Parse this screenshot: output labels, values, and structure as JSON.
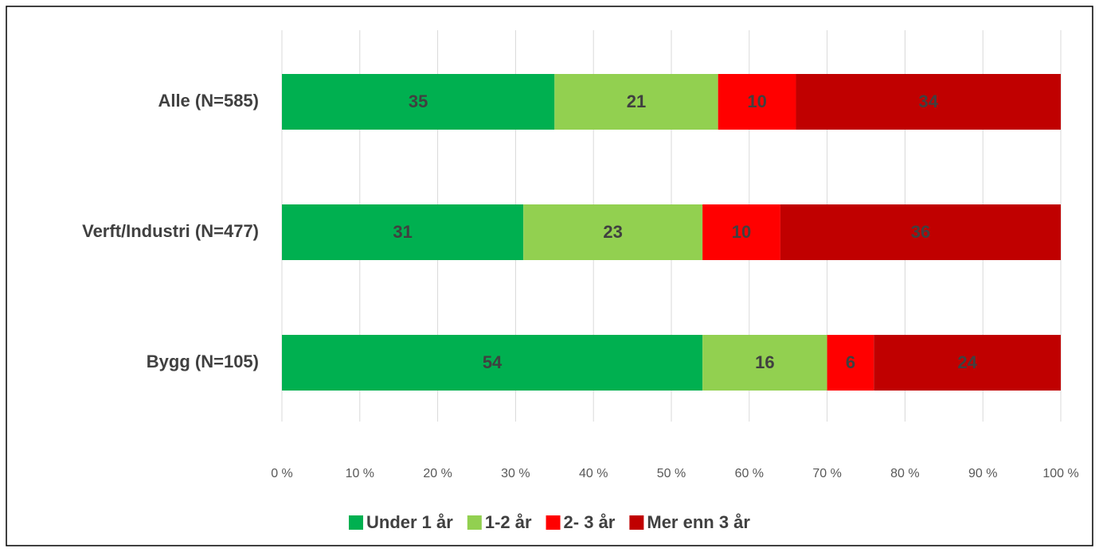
{
  "chart_data": {
    "type": "stacked_bar_horizontal",
    "categories": [
      "Alle (N=585)",
      "Verft/Industri (N=477)",
      "Bygg (N=105)"
    ],
    "series": [
      {
        "name": "Under 1 år",
        "color": "#00b050",
        "values": [
          35,
          31,
          54
        ]
      },
      {
        "name": "1-2 år",
        "color": "#92d050",
        "values": [
          21,
          23,
          16
        ]
      },
      {
        "name": "2- 3 år",
        "color": "#ff0000",
        "values": [
          10,
          10,
          6
        ]
      },
      {
        "name": "Mer enn 3 år",
        "color": "#c00000",
        "values": [
          34,
          36,
          24
        ]
      }
    ],
    "xlim": [
      0,
      100
    ],
    "xticks": [
      {
        "value": 0,
        "label": "0 %"
      },
      {
        "value": 10,
        "label": "10 %"
      },
      {
        "value": 20,
        "label": "20 %"
      },
      {
        "value": 30,
        "label": "30 %"
      },
      {
        "value": 40,
        "label": "40 %"
      },
      {
        "value": 50,
        "label": "50 %"
      },
      {
        "value": 60,
        "label": "60 %"
      },
      {
        "value": 70,
        "label": "70 %"
      },
      {
        "value": 80,
        "label": "80 %"
      },
      {
        "value": 90,
        "label": "90 %"
      },
      {
        "value": 100,
        "label": "100 %"
      }
    ],
    "grid": true,
    "legend": "bottom"
  }
}
